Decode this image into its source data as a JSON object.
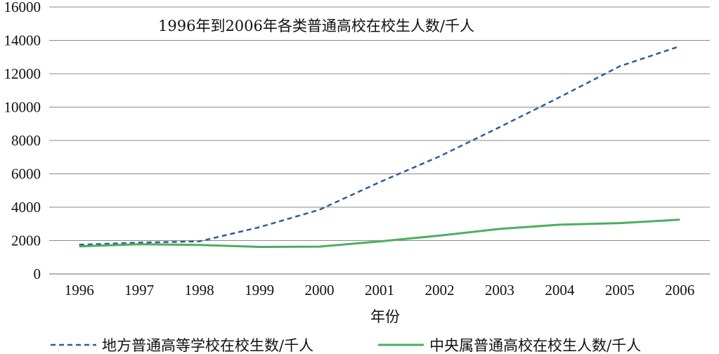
{
  "chart_data": {
    "type": "line",
    "title": "1996年到2006年各类普通高校在校生人数/千人",
    "xlabel": "年份",
    "ylabel": "",
    "categories": [
      "1996",
      "1997",
      "1998",
      "1999",
      "2000",
      "2001",
      "2002",
      "2003",
      "2004",
      "2005",
      "2006"
    ],
    "ylim": [
      0,
      16000
    ],
    "yticks": [
      "0",
      "2000",
      "4000",
      "6000",
      "8000",
      "10000",
      "12000",
      "14000",
      "16000"
    ],
    "grid": true,
    "legend_position": "bottom",
    "series": [
      {
        "name": "地方普通高等学校在校生数/千人",
        "values": [
          1750,
          1880,
          1950,
          2800,
          3850,
          5500,
          7050,
          8800,
          10600,
          12450,
          13650
        ],
        "color": "#2f5d96",
        "style": "dashed"
      },
      {
        "name": "中央属普通高校在校生人数/千人",
        "values": [
          1650,
          1780,
          1740,
          1620,
          1640,
          1950,
          2300,
          2700,
          2950,
          3050,
          3250
        ],
        "color": "#4caf5f",
        "style": "solid"
      }
    ]
  }
}
